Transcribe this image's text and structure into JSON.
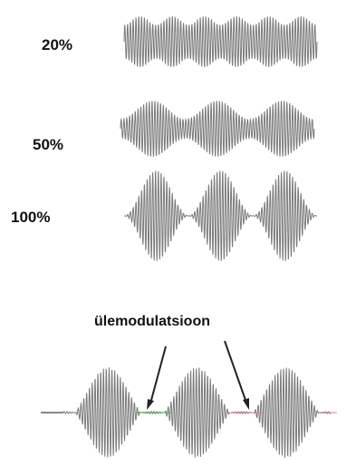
{
  "labels": {
    "m20": "20%",
    "m50": "50%",
    "m100": "100%",
    "overmodulation": "ülemodulatsioon"
  },
  "waveforms": [
    {
      "name": "modulation-20",
      "modulation_depth": 0.2
    },
    {
      "name": "modulation-50",
      "modulation_depth": 0.5
    },
    {
      "name": "modulation-100",
      "modulation_depth": 1.0
    },
    {
      "name": "overmodulation",
      "modulation_depth": 1.5
    }
  ],
  "colors": {
    "wave": "#7a7a7a",
    "arrow": "#222222",
    "baseline_green": "#4caf50",
    "baseline_pink": "#e07a9a"
  }
}
